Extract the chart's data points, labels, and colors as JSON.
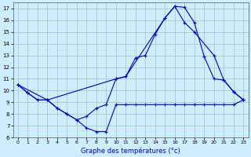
{
  "title": "Graphe des températures (°c)",
  "bg_color": "#cceeff",
  "grid_color": "#aacccc",
  "line_color": "#0000cc",
  "xlim": [
    -0.5,
    23.5
  ],
  "ylim": [
    6,
    17.5
  ],
  "xticks": [
    0,
    1,
    2,
    3,
    4,
    5,
    6,
    7,
    8,
    9,
    10,
    11,
    12,
    13,
    14,
    15,
    16,
    17,
    18,
    19,
    20,
    21,
    22,
    23
  ],
  "yticks": [
    6,
    7,
    8,
    9,
    10,
    11,
    12,
    13,
    14,
    15,
    16,
    17
  ],
  "curve_min_x": [
    0,
    1,
    2,
    3,
    4,
    5,
    6,
    7,
    8,
    9,
    10,
    11,
    12,
    13,
    14,
    15,
    16,
    17,
    18,
    19,
    20,
    21,
    22,
    23
  ],
  "curve_min_y": [
    10.5,
    9.8,
    9.2,
    9.2,
    8.5,
    8.0,
    7.5,
    6.8,
    6.5,
    6.5,
    8.8,
    8.8,
    8.8,
    8.8,
    8.8,
    8.8,
    8.8,
    8.8,
    8.8,
    8.8,
    8.8,
    8.8,
    8.8,
    9.2
  ],
  "curve_max_x": [
    0,
    1,
    2,
    3,
    4,
    5,
    6,
    7,
    8,
    9,
    10,
    11,
    12,
    13,
    14,
    15,
    16,
    17,
    18,
    19,
    20,
    21,
    22,
    23
  ],
  "curve_max_y": [
    10.5,
    9.8,
    9.2,
    9.2,
    8.5,
    8.0,
    7.5,
    7.8,
    8.5,
    8.8,
    11.0,
    11.2,
    12.8,
    13.0,
    14.8,
    16.2,
    17.2,
    17.1,
    15.8,
    12.9,
    11.0,
    10.9,
    9.9,
    9.2
  ],
  "curve_diag_x": [
    0,
    3,
    10,
    11,
    15,
    16,
    17,
    18,
    20,
    21,
    22,
    23
  ],
  "curve_diag_y": [
    10.5,
    9.2,
    11.0,
    11.2,
    16.2,
    17.2,
    15.8,
    15.0,
    13.0,
    10.9,
    9.9,
    9.2
  ]
}
